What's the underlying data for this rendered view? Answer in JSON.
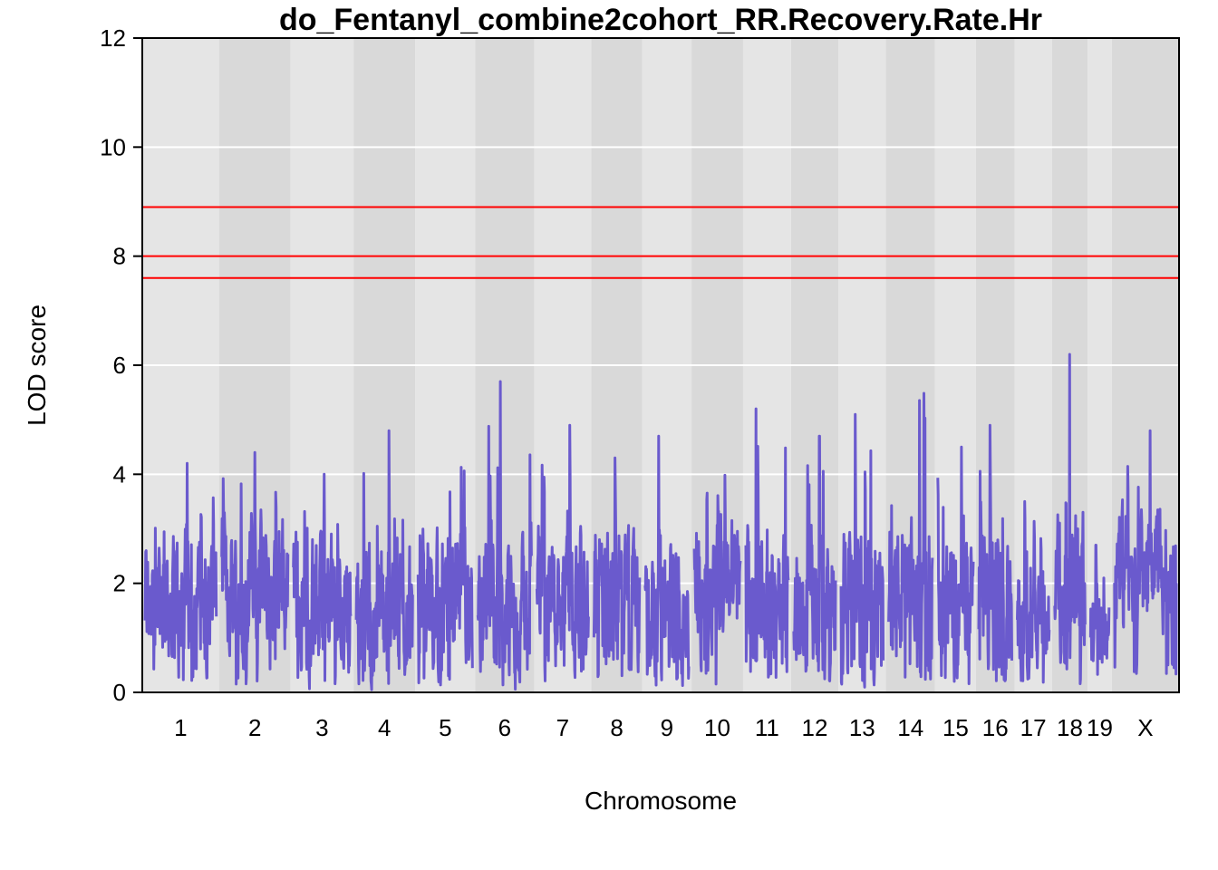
{
  "chart_data": {
    "type": "line",
    "title": "do_Fentanyl_combine2cohort_RR.Recovery.Rate.Hr",
    "xlabel": "Chromosome",
    "ylabel": "LOD score",
    "ylim": [
      0,
      12
    ],
    "yticks": [
      "0",
      "2",
      "4",
      "6",
      "8",
      "10",
      "12"
    ],
    "grid": true,
    "line_color": "#6A5ACD",
    "threshold_color": "#FF0000",
    "band_colors": [
      "#E5E5E5",
      "#D9D9D9"
    ],
    "thresholds": [
      8.9,
      8.0,
      7.6
    ],
    "chromosomes": [
      {
        "label": "1",
        "length": 195,
        "base": 1.6,
        "amp": 2.7,
        "peak": 4.2
      },
      {
        "label": "2",
        "length": 182,
        "base": 1.8,
        "amp": 2.8,
        "peak": 4.4
      },
      {
        "label": "3",
        "length": 160,
        "base": 1.4,
        "amp": 2.8,
        "peak": 4.0
      },
      {
        "label": "4",
        "length": 157,
        "base": 1.3,
        "amp": 2.9,
        "peak": 4.8
      },
      {
        "label": "5",
        "length": 152,
        "base": 1.5,
        "amp": 3.0,
        "peak": 5.0
      },
      {
        "label": "6",
        "length": 150,
        "base": 1.3,
        "amp": 2.8,
        "peak": 5.7
      },
      {
        "label": "7",
        "length": 145,
        "base": 1.6,
        "amp": 2.9,
        "peak": 4.9
      },
      {
        "label": "8",
        "length": 130,
        "base": 1.5,
        "amp": 2.8,
        "peak": 4.3
      },
      {
        "label": "9",
        "length": 125,
        "base": 1.4,
        "amp": 2.7,
        "peak": 4.7
      },
      {
        "label": "10",
        "length": 131,
        "base": 1.9,
        "amp": 2.6,
        "peak": 4.6
      },
      {
        "label": "11",
        "length": 122,
        "base": 1.6,
        "amp": 2.8,
        "peak": 5.2
      },
      {
        "label": "12",
        "length": 120,
        "base": 1.4,
        "amp": 2.8,
        "peak": 4.7
      },
      {
        "label": "13",
        "length": 121,
        "base": 1.5,
        "amp": 2.9,
        "peak": 5.1
      },
      {
        "label": "14",
        "length": 125,
        "base": 1.6,
        "amp": 2.9,
        "peak": 6.5
      },
      {
        "label": "15",
        "length": 104,
        "base": 1.4,
        "amp": 2.8,
        "peak": 4.5
      },
      {
        "label": "16",
        "length": 98,
        "base": 1.4,
        "amp": 2.9,
        "peak": 4.9
      },
      {
        "label": "17",
        "length": 95,
        "base": 1.4,
        "amp": 2.3,
        "peak": 3.5
      },
      {
        "label": "18",
        "length": 91,
        "base": 1.7,
        "amp": 3.0,
        "peak": 6.2
      },
      {
        "label": "19",
        "length": 61,
        "base": 1.0,
        "amp": 1.6,
        "peak": 2.7
      },
      {
        "label": "X",
        "length": 171,
        "base": 2.0,
        "amp": 2.6,
        "peak": 4.8
      }
    ]
  }
}
